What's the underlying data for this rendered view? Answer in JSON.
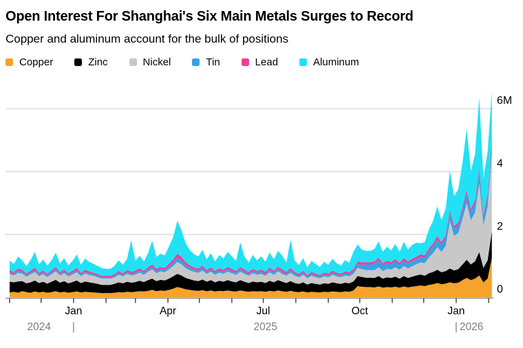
{
  "header": {
    "title": "Open Interest For Shanghai's Six Main Metals Surges to Record",
    "subtitle": "Copper and aluminum account for the bulk of positions"
  },
  "colors": {
    "gridline": "#DBDBDB",
    "axis": "#9B9B9B",
    "tick": "#3C3C3C",
    "month_label": "#000000",
    "year_label": "#7D7D7D",
    "background": "#FFFFFF"
  },
  "chart_data": {
    "type": "area",
    "stacked": true,
    "title": "Open Interest For Shanghai's Six Main Metals Surges to Record",
    "subtitle": "Copper and aluminum account for the bulk of positions",
    "unit": "millions of contracts",
    "legend_position": "top",
    "grid": "horizontal",
    "x_days_from_2024_11_01": [
      0,
      4,
      8,
      12,
      16,
      20,
      24,
      28,
      32,
      36,
      40,
      44,
      48,
      52,
      56,
      60,
      64,
      68,
      72,
      76,
      80,
      84,
      88,
      92,
      96,
      100,
      104,
      108,
      112,
      116,
      120,
      124,
      128,
      132,
      136,
      140,
      144,
      148,
      152,
      156,
      160,
      164,
      168,
      172,
      176,
      180,
      184,
      188,
      192,
      196,
      200,
      204,
      208,
      212,
      216,
      220,
      224,
      228,
      232,
      236,
      240,
      244,
      248,
      252,
      256,
      260,
      264,
      268,
      272,
      276,
      280,
      284,
      288,
      292,
      296,
      300,
      304,
      308,
      312,
      316,
      320,
      324,
      328,
      332,
      336,
      340,
      344,
      348,
      352,
      356,
      360,
      364,
      368,
      372,
      376,
      380,
      384,
      388,
      392,
      396,
      400,
      404,
      408,
      412,
      416,
      420,
      424,
      428,
      432,
      436,
      440,
      444,
      448,
      452,
      456,
      460
    ],
    "series": [
      {
        "name": "Copper",
        "color": "#F7A22B",
        "values": [
          0.16,
          0.18,
          0.15,
          0.2,
          0.17,
          0.15,
          0.19,
          0.16,
          0.18,
          0.15,
          0.17,
          0.2,
          0.16,
          0.18,
          0.15,
          0.17,
          0.19,
          0.16,
          0.18,
          0.17,
          0.16,
          0.15,
          0.14,
          0.14,
          0.14,
          0.15,
          0.17,
          0.16,
          0.18,
          0.17,
          0.18,
          0.2,
          0.19,
          0.21,
          0.24,
          0.2,
          0.22,
          0.21,
          0.24,
          0.28,
          0.33,
          0.3,
          0.26,
          0.24,
          0.22,
          0.21,
          0.23,
          0.2,
          0.22,
          0.19,
          0.21,
          0.2,
          0.22,
          0.2,
          0.19,
          0.22,
          0.2,
          0.18,
          0.2,
          0.19,
          0.2,
          0.18,
          0.21,
          0.19,
          0.22,
          0.2,
          0.18,
          0.21,
          0.18,
          0.17,
          0.19,
          0.16,
          0.18,
          0.17,
          0.16,
          0.18,
          0.17,
          0.19,
          0.18,
          0.17,
          0.19,
          0.18,
          0.22,
          0.36,
          0.34,
          0.33,
          0.33,
          0.32,
          0.35,
          0.31,
          0.33,
          0.32,
          0.34,
          0.31,
          0.35,
          0.32,
          0.34,
          0.36,
          0.38,
          0.36,
          0.4,
          0.42,
          0.46,
          0.42,
          0.44,
          0.48,
          0.45,
          0.47,
          0.55,
          0.62,
          0.55,
          0.6,
          0.7,
          0.48,
          0.6,
          1.25
        ]
      },
      {
        "name": "Zinc",
        "color": "#000000",
        "values": [
          0.34,
          0.3,
          0.36,
          0.32,
          0.28,
          0.33,
          0.35,
          0.3,
          0.32,
          0.29,
          0.33,
          0.36,
          0.31,
          0.34,
          0.3,
          0.32,
          0.35,
          0.3,
          0.33,
          0.31,
          0.3,
          0.28,
          0.26,
          0.26,
          0.26,
          0.28,
          0.31,
          0.29,
          0.32,
          0.3,
          0.31,
          0.33,
          0.3,
          0.34,
          0.36,
          0.32,
          0.34,
          0.33,
          0.36,
          0.39,
          0.42,
          0.4,
          0.36,
          0.34,
          0.32,
          0.31,
          0.34,
          0.3,
          0.33,
          0.29,
          0.32,
          0.3,
          0.33,
          0.31,
          0.29,
          0.33,
          0.3,
          0.28,
          0.31,
          0.29,
          0.3,
          0.28,
          0.32,
          0.29,
          0.33,
          0.3,
          0.28,
          0.31,
          0.28,
          0.26,
          0.29,
          0.25,
          0.28,
          0.26,
          0.25,
          0.27,
          0.26,
          0.29,
          0.27,
          0.26,
          0.28,
          0.27,
          0.29,
          0.32,
          0.31,
          0.3,
          0.3,
          0.3,
          0.33,
          0.29,
          0.31,
          0.3,
          0.32,
          0.29,
          0.33,
          0.3,
          0.32,
          0.34,
          0.35,
          0.33,
          0.37,
          0.39,
          0.42,
          0.38,
          0.4,
          0.44,
          0.41,
          0.43,
          0.5,
          0.58,
          0.5,
          0.55,
          0.74,
          0.46,
          0.58,
          0.85
        ]
      },
      {
        "name": "Nickel",
        "color": "#C8C8C8",
        "values": [
          0.25,
          0.22,
          0.27,
          0.24,
          0.21,
          0.25,
          0.27,
          0.22,
          0.24,
          0.21,
          0.24,
          0.27,
          0.23,
          0.25,
          0.22,
          0.24,
          0.26,
          0.22,
          0.25,
          0.23,
          0.23,
          0.21,
          0.2,
          0.2,
          0.2,
          0.21,
          0.24,
          0.22,
          0.25,
          0.23,
          0.24,
          0.26,
          0.23,
          0.27,
          0.29,
          0.25,
          0.27,
          0.26,
          0.29,
          0.33,
          0.38,
          0.35,
          0.31,
          0.28,
          0.27,
          0.26,
          0.28,
          0.25,
          0.27,
          0.24,
          0.26,
          0.25,
          0.27,
          0.26,
          0.24,
          0.27,
          0.25,
          0.23,
          0.26,
          0.24,
          0.25,
          0.23,
          0.27,
          0.24,
          0.28,
          0.25,
          0.23,
          0.26,
          0.23,
          0.21,
          0.24,
          0.2,
          0.23,
          0.21,
          0.2,
          0.22,
          0.21,
          0.24,
          0.22,
          0.21,
          0.23,
          0.22,
          0.24,
          0.26,
          0.25,
          0.24,
          0.24,
          0.25,
          0.28,
          0.24,
          0.26,
          0.27,
          0.3,
          0.28,
          0.32,
          0.3,
          0.33,
          0.36,
          0.38,
          0.4,
          0.5,
          0.6,
          0.72,
          0.65,
          0.8,
          1.5,
          1.1,
          1.15,
          1.45,
          1.8,
          1.4,
          1.55,
          2.2,
          1.35,
          1.7,
          2.5
        ]
      },
      {
        "name": "Tin",
        "color": "#36A2E4",
        "values": [
          0.06,
          0.05,
          0.07,
          0.06,
          0.05,
          0.06,
          0.07,
          0.05,
          0.06,
          0.05,
          0.06,
          0.07,
          0.05,
          0.06,
          0.05,
          0.06,
          0.07,
          0.05,
          0.06,
          0.06,
          0.05,
          0.05,
          0.04,
          0.04,
          0.04,
          0.05,
          0.06,
          0.05,
          0.06,
          0.06,
          0.06,
          0.07,
          0.06,
          0.07,
          0.08,
          0.07,
          0.07,
          0.07,
          0.09,
          0.11,
          0.14,
          0.12,
          0.1,
          0.08,
          0.07,
          0.07,
          0.08,
          0.06,
          0.07,
          0.06,
          0.07,
          0.07,
          0.08,
          0.07,
          0.06,
          0.08,
          0.07,
          0.06,
          0.07,
          0.06,
          0.07,
          0.06,
          0.08,
          0.07,
          0.08,
          0.07,
          0.06,
          0.08,
          0.06,
          0.06,
          0.07,
          0.05,
          0.06,
          0.06,
          0.05,
          0.06,
          0.06,
          0.07,
          0.06,
          0.06,
          0.07,
          0.07,
          0.08,
          0.12,
          0.14,
          0.18,
          0.18,
          0.2,
          0.22,
          0.18,
          0.2,
          0.16,
          0.18,
          0.15,
          0.17,
          0.15,
          0.16,
          0.15,
          0.18,
          0.17,
          0.2,
          0.22,
          0.25,
          0.22,
          0.24,
          0.25,
          0.22,
          0.24,
          0.28,
          0.3,
          0.27,
          0.3,
          0.35,
          0.26,
          0.3,
          0.35
        ]
      },
      {
        "name": "Lead",
        "color": "#F03D96",
        "values": [
          0.06,
          0.05,
          0.07,
          0.06,
          0.05,
          0.06,
          0.07,
          0.05,
          0.06,
          0.05,
          0.06,
          0.07,
          0.05,
          0.06,
          0.05,
          0.06,
          0.07,
          0.05,
          0.06,
          0.06,
          0.05,
          0.05,
          0.05,
          0.05,
          0.05,
          0.05,
          0.06,
          0.05,
          0.06,
          0.06,
          0.06,
          0.07,
          0.06,
          0.07,
          0.08,
          0.07,
          0.07,
          0.07,
          0.09,
          0.1,
          0.12,
          0.11,
          0.09,
          0.08,
          0.07,
          0.07,
          0.08,
          0.06,
          0.07,
          0.06,
          0.07,
          0.06,
          0.07,
          0.07,
          0.06,
          0.07,
          0.07,
          0.06,
          0.07,
          0.06,
          0.07,
          0.06,
          0.07,
          0.06,
          0.07,
          0.07,
          0.06,
          0.07,
          0.06,
          0.05,
          0.06,
          0.05,
          0.06,
          0.06,
          0.05,
          0.06,
          0.06,
          0.06,
          0.06,
          0.05,
          0.06,
          0.06,
          0.07,
          0.08,
          0.08,
          0.07,
          0.07,
          0.07,
          0.08,
          0.07,
          0.07,
          0.07,
          0.08,
          0.07,
          0.08,
          0.07,
          0.08,
          0.08,
          0.08,
          0.08,
          0.09,
          0.09,
          0.1,
          0.09,
          0.1,
          0.1,
          0.09,
          0.1,
          0.1,
          0.11,
          0.1,
          0.1,
          0.11,
          0.09,
          0.1,
          0.1
        ]
      },
      {
        "name": "Aluminum",
        "color": "#22E1F4",
        "values": [
          0.3,
          0.26,
          0.38,
          0.3,
          0.24,
          0.34,
          0.5,
          0.27,
          0.35,
          0.26,
          0.32,
          0.45,
          0.28,
          0.36,
          0.25,
          0.31,
          0.42,
          0.26,
          0.36,
          0.3,
          0.28,
          0.26,
          0.24,
          0.22,
          0.22,
          0.26,
          0.34,
          0.27,
          0.36,
          1.0,
          0.32,
          0.4,
          0.3,
          0.44,
          0.75,
          0.38,
          0.42,
          0.4,
          0.55,
          0.7,
          1.05,
          0.85,
          0.6,
          0.48,
          0.42,
          0.38,
          0.5,
          0.34,
          0.45,
          0.3,
          0.42,
          0.36,
          0.48,
          0.4,
          0.32,
          0.78,
          0.42,
          0.3,
          0.44,
          0.34,
          0.42,
          0.32,
          0.48,
          0.36,
          0.5,
          0.44,
          0.3,
          0.9,
          0.36,
          0.28,
          0.4,
          0.25,
          0.35,
          0.3,
          0.26,
          0.34,
          0.28,
          0.38,
          0.3,
          0.26,
          0.36,
          0.3,
          0.55,
          0.55,
          0.4,
          0.36,
          0.36,
          0.4,
          0.52,
          0.36,
          0.44,
          0.38,
          0.48,
          0.35,
          0.52,
          0.38,
          0.44,
          0.45,
          0.35,
          0.42,
          0.6,
          0.72,
          0.95,
          0.7,
          0.85,
          1.25,
          0.95,
          1.05,
          1.4,
          1.95,
          1.2,
          1.45,
          2.25,
          1.15,
          1.35,
          1.5
        ]
      }
    ],
    "y_axis": {
      "tick_values": [
        0,
        2,
        4,
        6
      ],
      "tick_labels": [
        "0",
        "2",
        "4",
        "6M"
      ],
      "range": [
        0,
        6.8
      ]
    },
    "x_axis": {
      "month_ticks_days": [
        0,
        30,
        61,
        92,
        120,
        151,
        181,
        212,
        242,
        273,
        304,
        334,
        365,
        395,
        426,
        457
      ],
      "month_labels": [
        {
          "text": "Jan",
          "day": 61
        },
        {
          "text": "Apr",
          "day": 151
        },
        {
          "text": "Jul",
          "day": 242
        },
        {
          "text": "Oct",
          "day": 334
        },
        {
          "text": "Jan",
          "day": 426
        }
      ],
      "year_labels": [
        {
          "text": "2024",
          "day": 28,
          "anchor": "middle"
        },
        {
          "text": "2025",
          "day": 244,
          "anchor": "middle"
        },
        {
          "text": "2026",
          "day": 426,
          "anchor": "start"
        }
      ],
      "year_dividers_days": [
        61,
        426
      ]
    }
  }
}
